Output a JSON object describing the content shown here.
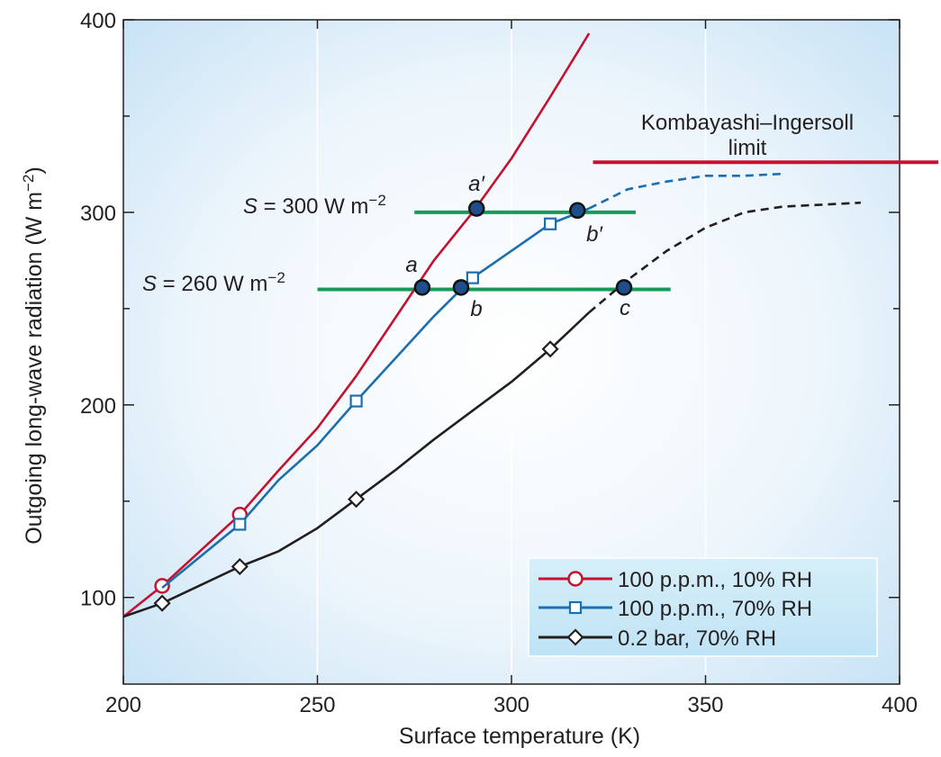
{
  "chart_data": {
    "type": "line",
    "xlabel": "Surface temperature (K)",
    "ylabel_main": "Outgoing long-wave radiation (W m",
    "ylabel_sup": "−2",
    "ylabel_end": ")",
    "xlim": [
      200,
      400
    ],
    "ylim": [
      55,
      400
    ],
    "x_ticks": [
      200,
      250,
      300,
      350,
      400
    ],
    "x_tick_labels": [
      "200",
      "250",
      "300",
      "350",
      "400"
    ],
    "y_ticks": [
      100,
      200,
      300,
      400
    ],
    "y_tick_labels": [
      "100",
      "200",
      "300",
      "400"
    ],
    "y_minor_ticks": [
      150,
      250,
      350
    ],
    "grid": true,
    "legend_position": "bottom-right",
    "colors": {
      "red": "#c4122f",
      "blue": "#1b6eb0",
      "black": "#231f20",
      "green": "#159a5c",
      "point_fill": "#1f4e8c",
      "legend_bg": "#c7e8f8",
      "background_grad_center": "#ffffff",
      "background_grad_edge": "#c6e2f5"
    },
    "series": [
      {
        "name": "100 p.p.m., 10% RH",
        "color": "#c4122f",
        "marker": "circle",
        "line": [
          [
            200,
            90
          ],
          [
            210,
            106
          ],
          [
            230,
            143
          ],
          [
            240,
            166
          ],
          [
            250,
            188
          ],
          [
            260,
            215
          ],
          [
            270,
            245
          ],
          [
            280,
            275
          ],
          [
            290,
            300
          ],
          [
            300,
            328
          ],
          [
            310,
            360
          ],
          [
            320,
            393
          ]
        ],
        "markers": [
          [
            210,
            106
          ],
          [
            230,
            143
          ]
        ]
      },
      {
        "name": "100 p.p.m., 70% RH",
        "color": "#1b6eb0",
        "marker": "square",
        "line": [
          [
            210,
            105
          ],
          [
            230,
            138
          ],
          [
            240,
            161
          ],
          [
            250,
            179
          ],
          [
            260,
            202
          ],
          [
            270,
            224
          ],
          [
            280,
            246
          ],
          [
            290,
            266
          ],
          [
            300,
            280
          ],
          [
            310,
            294
          ],
          [
            320,
            302
          ]
        ],
        "dashed": [
          [
            320,
            302
          ],
          [
            330,
            312
          ],
          [
            340,
            316
          ],
          [
            350,
            319
          ],
          [
            360,
            319
          ],
          [
            370,
            320
          ]
        ],
        "markers": [
          [
            230,
            138
          ],
          [
            260,
            202
          ],
          [
            290,
            266
          ],
          [
            310,
            294
          ]
        ]
      },
      {
        "name": "0.2 bar, 70% RH",
        "color": "#231f20",
        "marker": "diamond",
        "line": [
          [
            200,
            90
          ],
          [
            210,
            97
          ],
          [
            230,
            116
          ],
          [
            240,
            124
          ],
          [
            250,
            136
          ],
          [
            260,
            151
          ],
          [
            270,
            166
          ],
          [
            280,
            182
          ],
          [
            290,
            197
          ],
          [
            300,
            212
          ],
          [
            310,
            229
          ],
          [
            320,
            248
          ]
        ],
        "dashed": [
          [
            320,
            248
          ],
          [
            330,
            265
          ],
          [
            340,
            280
          ],
          [
            350,
            292
          ],
          [
            360,
            300
          ],
          [
            370,
            303
          ],
          [
            380,
            304
          ],
          [
            390,
            305
          ]
        ],
        "markers": [
          [
            210,
            97
          ],
          [
            230,
            116
          ],
          [
            260,
            151
          ],
          [
            310,
            229
          ]
        ]
      }
    ],
    "reference_lines": [
      {
        "label_S": "S",
        "label_rest": " = 300 W m",
        "label_sup": "−2",
        "y": 300,
        "x_range": [
          275,
          332
        ],
        "color": "#159a5c"
      },
      {
        "label_S": "S",
        "label_rest": " = 260 W m",
        "label_sup": "−2",
        "y": 260,
        "x_range": [
          250,
          341
        ],
        "color": "#159a5c"
      }
    ],
    "limit_line": {
      "label_line1": "Kombayashi–Ingersoll",
      "label_line2": "limit",
      "y": 326,
      "x_range": [
        321,
        410
      ],
      "color": "#c4122f"
    },
    "equilibrium_points": [
      {
        "label": "a",
        "x": 277,
        "y": 261
      },
      {
        "label": "b",
        "x": 287,
        "y": 261
      },
      {
        "label": "c",
        "x": 329,
        "y": 261
      },
      {
        "label": "a′",
        "x": 291,
        "y": 302
      },
      {
        "label": "b′",
        "x": 317,
        "y": 301
      }
    ]
  }
}
